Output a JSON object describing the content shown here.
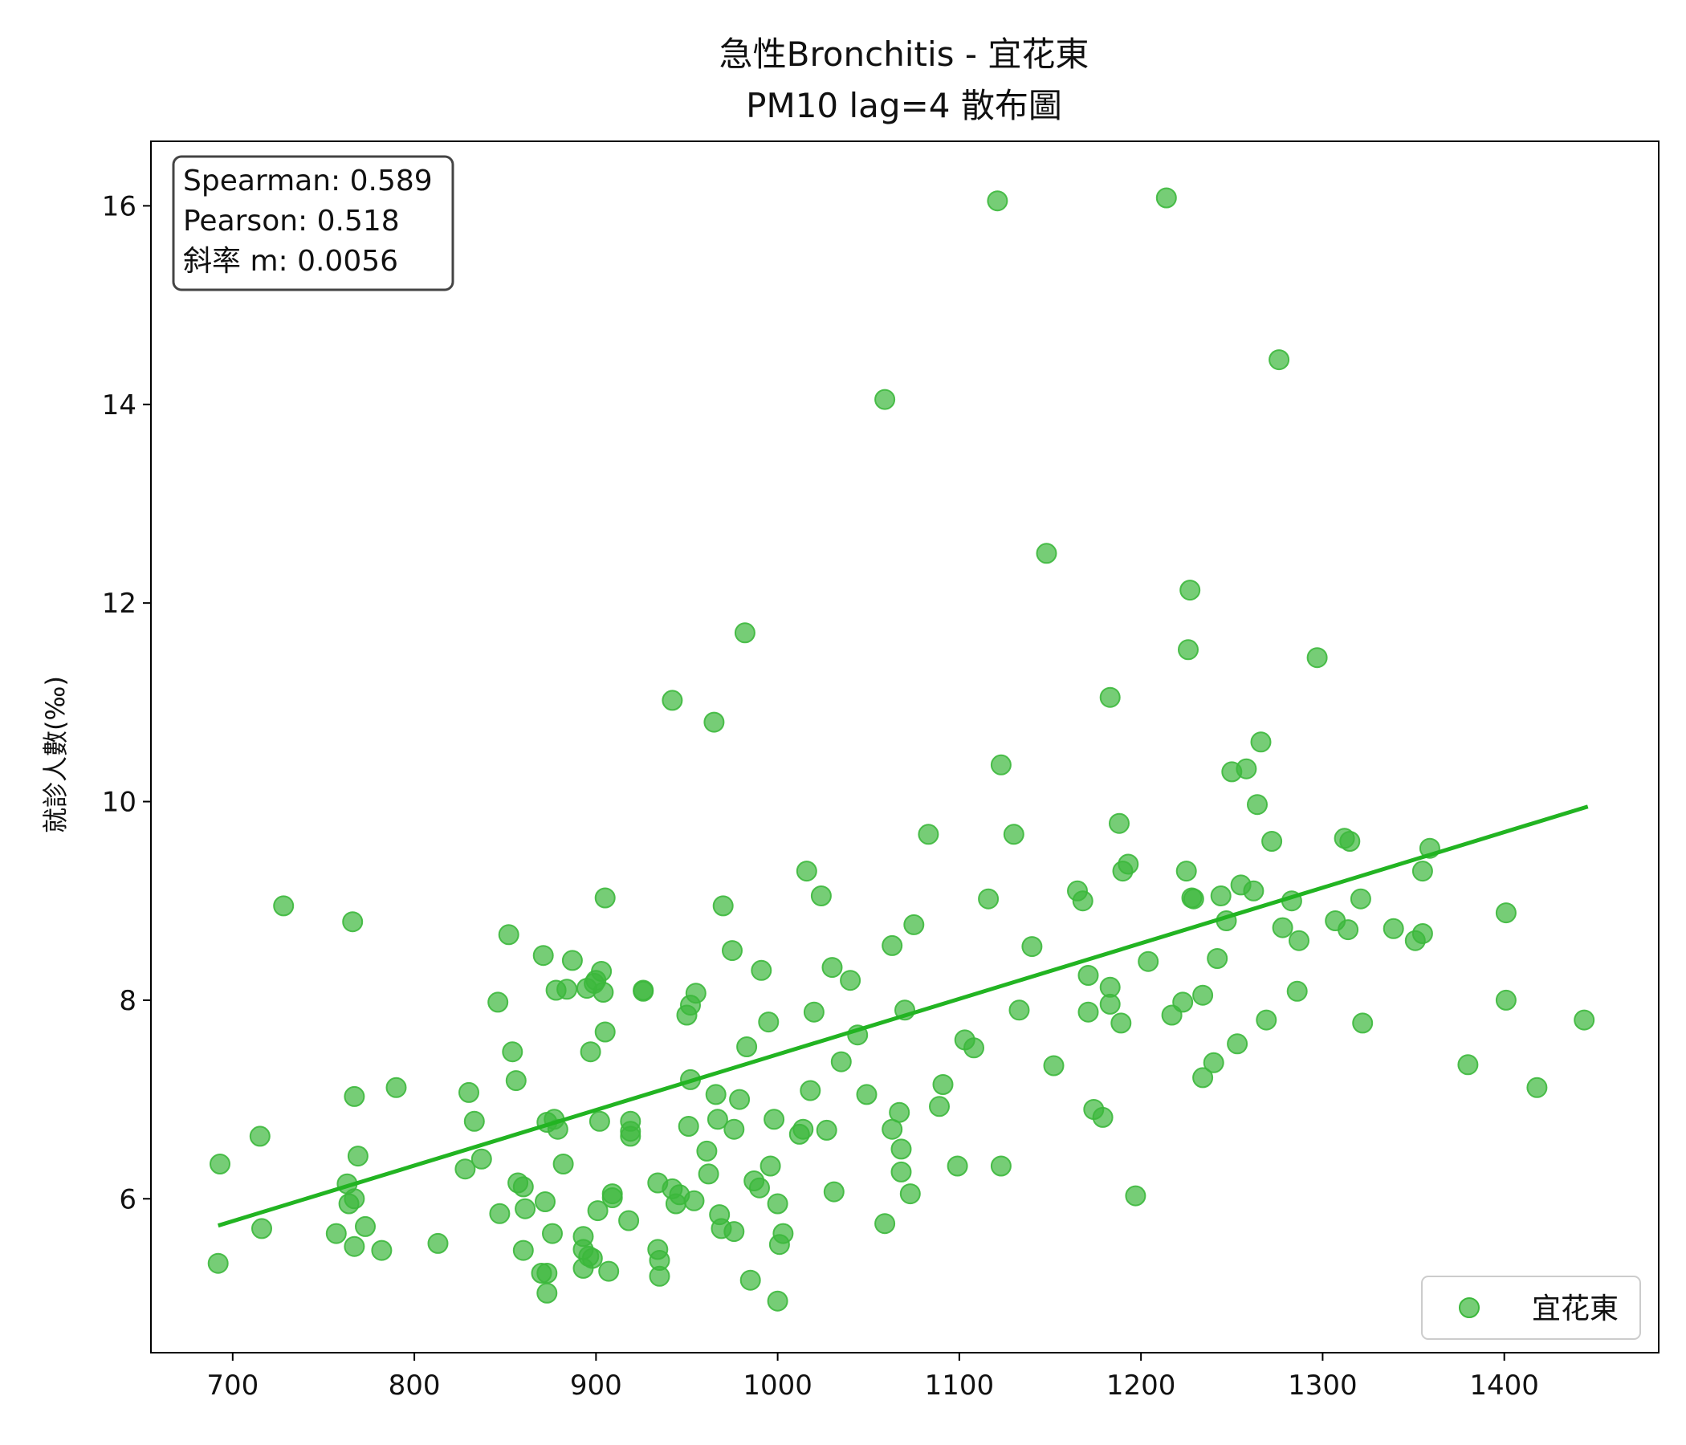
{
  "chart_data": {
    "type": "scatter",
    "title_line1": "急性Bronchitis - 宜花東",
    "title_line2": "PM10 lag=4 散布圖",
    "xlabel": "",
    "ylabel": "就診人數(‰)",
    "xlim": [
      655,
      1485
    ],
    "ylim": [
      4.45,
      16.65
    ],
    "xticks": [
      700,
      800,
      900,
      1000,
      1100,
      1200,
      1300,
      1400
    ],
    "yticks": [
      6,
      8,
      10,
      12,
      14,
      16
    ],
    "grid": false,
    "legend_position": "lower-right",
    "point_color": "#3cb83c",
    "line_color": "#22b422",
    "stats": [
      "Spearman: 0.589",
      "Pearson: 0.518",
      "斜率 m: 0.0056"
    ],
    "series": [
      {
        "name": "宜花東",
        "points": [
          [
            692,
            5.35
          ],
          [
            693,
            6.35
          ],
          [
            715,
            6.63
          ],
          [
            716,
            5.7
          ],
          [
            728,
            8.95
          ],
          [
            757,
            5.65
          ],
          [
            763,
            6.15
          ],
          [
            764,
            5.95
          ],
          [
            766,
            8.79
          ],
          [
            767,
            6.0
          ],
          [
            767,
            7.03
          ],
          [
            767,
            5.52
          ],
          [
            769,
            6.43
          ],
          [
            773,
            5.72
          ],
          [
            782,
            5.48
          ],
          [
            790,
            7.12
          ],
          [
            813,
            5.55
          ],
          [
            828,
            6.3
          ],
          [
            830,
            7.07
          ],
          [
            833,
            6.78
          ],
          [
            837,
            6.4
          ],
          [
            846,
            7.98
          ],
          [
            847,
            5.85
          ],
          [
            852,
            8.66
          ],
          [
            854,
            7.48
          ],
          [
            856,
            7.19
          ],
          [
            857,
            6.16
          ],
          [
            860,
            6.12
          ],
          [
            860,
            5.48
          ],
          [
            861,
            5.9
          ],
          [
            870,
            5.25
          ],
          [
            871,
            8.45
          ],
          [
            872,
            5.97
          ],
          [
            873,
            5.25
          ],
          [
            873,
            5.05
          ],
          [
            873,
            6.77
          ],
          [
            876,
            5.65
          ],
          [
            877,
            6.8
          ],
          [
            878,
            8.1
          ],
          [
            879,
            6.7
          ],
          [
            882,
            6.35
          ],
          [
            884,
            8.11
          ],
          [
            887,
            8.4
          ],
          [
            893,
            5.49
          ],
          [
            893,
            5.62
          ],
          [
            893,
            5.3
          ],
          [
            895,
            8.12
          ],
          [
            896,
            5.42
          ],
          [
            897,
            7.48
          ],
          [
            898,
            5.4
          ],
          [
            899,
            8.17
          ],
          [
            900,
            8.2
          ],
          [
            901,
            5.88
          ],
          [
            902,
            6.78
          ],
          [
            903,
            8.29
          ],
          [
            904,
            8.08
          ],
          [
            905,
            7.68
          ],
          [
            905,
            9.03
          ],
          [
            907,
            5.27
          ],
          [
            909,
            6.05
          ],
          [
            909,
            6.01
          ],
          [
            918,
            5.78
          ],
          [
            919,
            6.78
          ],
          [
            919,
            6.68
          ],
          [
            919,
            6.63
          ],
          [
            926,
            8.09
          ],
          [
            926,
            8.1
          ],
          [
            934,
            6.16
          ],
          [
            934,
            5.49
          ],
          [
            935,
            5.38
          ],
          [
            935,
            5.22
          ],
          [
            942,
            11.02
          ],
          [
            942,
            6.1
          ],
          [
            944,
            5.95
          ],
          [
            946,
            6.04
          ],
          [
            950,
            7.85
          ],
          [
            951,
            6.73
          ],
          [
            952,
            7.95
          ],
          [
            952,
            7.2
          ],
          [
            954,
            5.98
          ],
          [
            955,
            8.07
          ],
          [
            961,
            6.48
          ],
          [
            962,
            6.25
          ],
          [
            965,
            10.8
          ],
          [
            966,
            7.05
          ],
          [
            967,
            6.8
          ],
          [
            968,
            5.84
          ],
          [
            969,
            5.7
          ],
          [
            970,
            8.95
          ],
          [
            975,
            8.5
          ],
          [
            976,
            5.67
          ],
          [
            976,
            6.7
          ],
          [
            979,
            7.0
          ],
          [
            982,
            11.7
          ],
          [
            983,
            7.53
          ],
          [
            985,
            5.18
          ],
          [
            987,
            6.18
          ],
          [
            990,
            6.11
          ],
          [
            991,
            8.3
          ],
          [
            995,
            7.78
          ],
          [
            996,
            6.33
          ],
          [
            998,
            6.8
          ],
          [
            1000,
            5.95
          ],
          [
            1000,
            4.97
          ],
          [
            1001,
            5.54
          ],
          [
            1003,
            5.65
          ],
          [
            1012,
            6.65
          ],
          [
            1014,
            6.7
          ],
          [
            1016,
            9.3
          ],
          [
            1018,
            7.09
          ],
          [
            1020,
            7.88
          ],
          [
            1024,
            9.05
          ],
          [
            1027,
            6.69
          ],
          [
            1030,
            8.33
          ],
          [
            1031,
            6.07
          ],
          [
            1035,
            7.38
          ],
          [
            1040,
            8.2
          ],
          [
            1044,
            7.65
          ],
          [
            1049,
            7.05
          ],
          [
            1059,
            14.05
          ],
          [
            1059,
            5.75
          ],
          [
            1063,
            8.55
          ],
          [
            1063,
            6.7
          ],
          [
            1067,
            6.87
          ],
          [
            1068,
            6.5
          ],
          [
            1068,
            6.27
          ],
          [
            1070,
            7.9
          ],
          [
            1073,
            6.05
          ],
          [
            1075,
            8.76
          ],
          [
            1083,
            9.67
          ],
          [
            1089,
            6.93
          ],
          [
            1091,
            7.15
          ],
          [
            1099,
            6.33
          ],
          [
            1103,
            7.6
          ],
          [
            1108,
            7.52
          ],
          [
            1116,
            9.02
          ],
          [
            1121,
            16.05
          ],
          [
            1123,
            10.37
          ],
          [
            1123,
            6.33
          ],
          [
            1130,
            9.67
          ],
          [
            1133,
            7.9
          ],
          [
            1140,
            8.54
          ],
          [
            1148,
            12.5
          ],
          [
            1152,
            7.34
          ],
          [
            1165,
            9.1
          ],
          [
            1168,
            9.0
          ],
          [
            1171,
            8.25
          ],
          [
            1171,
            7.88
          ],
          [
            1174,
            6.9
          ],
          [
            1179,
            6.82
          ],
          [
            1183,
            8.13
          ],
          [
            1183,
            7.96
          ],
          [
            1183,
            11.05
          ],
          [
            1188,
            9.78
          ],
          [
            1189,
            7.77
          ],
          [
            1190,
            9.3
          ],
          [
            1193,
            9.37
          ],
          [
            1197,
            6.03
          ],
          [
            1204,
            8.39
          ],
          [
            1214,
            16.08
          ],
          [
            1217,
            7.85
          ],
          [
            1223,
            7.98
          ],
          [
            1225,
            9.3
          ],
          [
            1226,
            11.53
          ],
          [
            1227,
            12.13
          ],
          [
            1228,
            9.03
          ],
          [
            1229,
            9.02
          ],
          [
            1234,
            8.05
          ],
          [
            1234,
            7.22
          ],
          [
            1240,
            7.37
          ],
          [
            1242,
            8.42
          ],
          [
            1244,
            9.05
          ],
          [
            1247,
            8.8
          ],
          [
            1250,
            10.3
          ],
          [
            1253,
            7.56
          ],
          [
            1255,
            9.16
          ],
          [
            1258,
            10.33
          ],
          [
            1262,
            9.1
          ],
          [
            1264,
            9.97
          ],
          [
            1266,
            10.6
          ],
          [
            1269,
            7.8
          ],
          [
            1272,
            9.6
          ],
          [
            1276,
            14.45
          ],
          [
            1278,
            8.73
          ],
          [
            1283,
            9.0
          ],
          [
            1286,
            8.09
          ],
          [
            1287,
            8.6
          ],
          [
            1297,
            11.45
          ],
          [
            1307,
            8.8
          ],
          [
            1312,
            9.63
          ],
          [
            1314,
            8.71
          ],
          [
            1315,
            9.6
          ],
          [
            1321,
            9.02
          ],
          [
            1322,
            7.77
          ],
          [
            1339,
            8.72
          ],
          [
            1351,
            8.6
          ],
          [
            1355,
            8.67
          ],
          [
            1355,
            9.3
          ],
          [
            1359,
            9.53
          ],
          [
            1380,
            7.35
          ],
          [
            1401,
            8.88
          ],
          [
            1401,
            8.0
          ],
          [
            1418,
            7.12
          ],
          [
            1444,
            7.8
          ]
        ]
      }
    ],
    "regression_line": {
      "x": [
        692,
        1446
      ],
      "y": [
        5.73,
        9.95
      ]
    }
  }
}
